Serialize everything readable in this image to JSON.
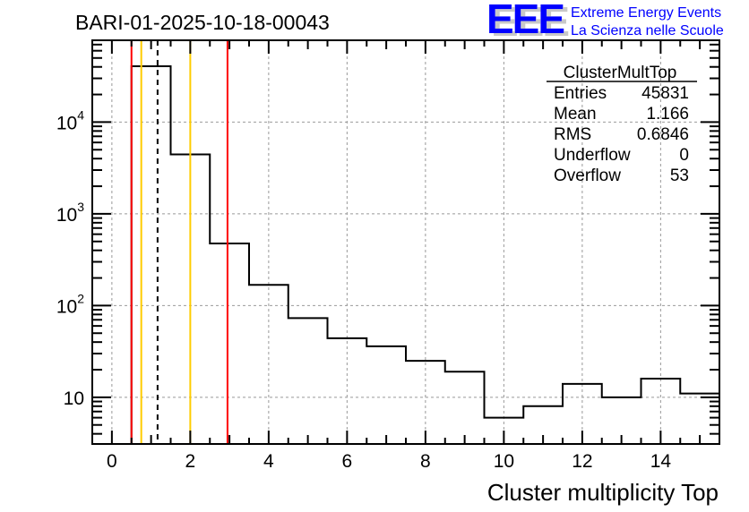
{
  "chart_data": {
    "type": "histogram",
    "title": "BARI-01-2025-10-18-00043",
    "xlabel": "Cluster multiplicity Top",
    "ylabel": "",
    "xlim": [
      -0.5,
      15.5
    ],
    "ylim": [
      3.1,
      78000
    ],
    "yscale": "log",
    "grid": true,
    "x_ticks": [
      0,
      2,
      4,
      6,
      8,
      10,
      12,
      14
    ],
    "x_tick_labels": [
      "0",
      "2",
      "4",
      "6",
      "8",
      "10",
      "12",
      "14"
    ],
    "y_ticks": [
      10,
      100,
      1000,
      10000
    ],
    "y_tick_labels": [
      {
        "base": "10",
        "exp": ""
      },
      {
        "base": "10",
        "exp": "2"
      },
      {
        "base": "10",
        "exp": "3"
      },
      {
        "base": "10",
        "exp": "4"
      }
    ],
    "bin_edges": [
      0.5,
      1.5,
      2.5,
      3.5,
      4.5,
      5.5,
      6.5,
      7.5,
      8.5,
      9.5,
      10.5,
      11.5,
      12.5,
      13.5,
      14.5,
      15.5
    ],
    "values": [
      40600,
      4450,
      475,
      168,
      73,
      44,
      36,
      25,
      19,
      6,
      8,
      14,
      10,
      16,
      11
    ],
    "vertical_lines": [
      {
        "x": 0.5,
        "color": "#ff0000",
        "style": "solid"
      },
      {
        "x": 0.75,
        "color": "#ffcc00",
        "style": "solid"
      },
      {
        "x": 1.166,
        "color": "#000000",
        "style": "dashed"
      },
      {
        "x": 2.0,
        "color": "#ffcc00",
        "style": "solid"
      },
      {
        "x": 2.95,
        "color": "#ff0000",
        "style": "solid"
      }
    ],
    "stats": {
      "name": "ClusterMultTop",
      "rows": [
        {
          "label": "Entries",
          "value": "45831"
        },
        {
          "label": "Mean",
          "value": "1.166"
        },
        {
          "label": "RMS",
          "value": "0.6846"
        },
        {
          "label": "Underflow",
          "value": "0"
        },
        {
          "label": "Overflow",
          "value": "53"
        }
      ]
    }
  },
  "logo": {
    "letters": "EEE",
    "line1": "Extreme Energy Events",
    "line2": "La Scienza nelle Scuole",
    "color": "#0000ff"
  }
}
